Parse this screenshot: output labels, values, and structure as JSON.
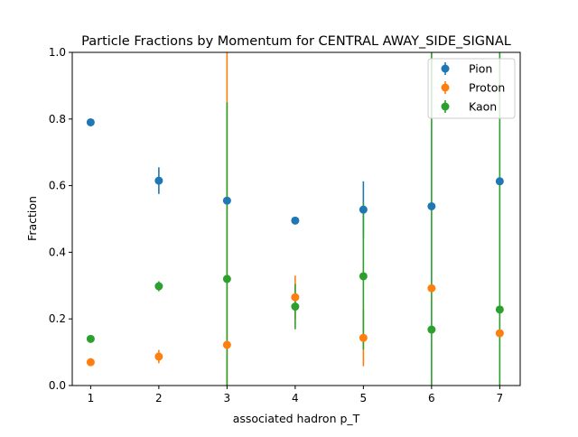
{
  "chart_data": {
    "type": "scatter",
    "title": "Particle Fractions by Momentum for CENTRAL AWAY_SIDE_SIGNAL",
    "xlabel": "associated hadron p_T",
    "ylabel": "Fraction",
    "xlim": [
      0.73,
      7.3
    ],
    "ylim": [
      0,
      1.0
    ],
    "xticks": [
      1,
      2,
      3,
      4,
      5,
      6,
      7
    ],
    "yticks": [
      0.0,
      0.2,
      0.4,
      0.6,
      0.8,
      1.0
    ],
    "grid": false,
    "legend_position": "top-right",
    "series": [
      {
        "name": "Pion",
        "color": "#1f77b4",
        "points": [
          {
            "x": 1,
            "y": 0.79,
            "err": 0.0
          },
          {
            "x": 2,
            "y": 0.615,
            "err": 0.04
          },
          {
            "x": 3,
            "y": 0.555,
            "err": 0.0
          },
          {
            "x": 4,
            "y": 0.495,
            "err": 0.0
          },
          {
            "x": 5,
            "y": 0.528,
            "err": 0.085
          },
          {
            "x": 6,
            "y": 0.538,
            "err": 0.0
          },
          {
            "x": 7,
            "y": 0.613,
            "err": 0.0
          }
        ]
      },
      {
        "name": "Proton",
        "color": "#ff7f0e",
        "points": [
          {
            "x": 1,
            "y": 0.07,
            "err": 0.0
          },
          {
            "x": 2,
            "y": 0.087,
            "err": 0.02
          },
          {
            "x": 3,
            "y": 0.122,
            "err": 0.9
          },
          {
            "x": 4,
            "y": 0.265,
            "err": 0.065
          },
          {
            "x": 5,
            "y": 0.143,
            "err": 0.085
          },
          {
            "x": 6,
            "y": 0.292,
            "err": 0.0
          },
          {
            "x": 7,
            "y": 0.157,
            "err": 0.0
          }
        ]
      },
      {
        "name": "Kaon",
        "color": "#2ca02c",
        "points": [
          {
            "x": 1,
            "y": 0.14,
            "err": 0.0
          },
          {
            "x": 2,
            "y": 0.298,
            "err": 0.015
          },
          {
            "x": 3,
            "y": 0.32,
            "err": 0.53
          },
          {
            "x": 4,
            "y": 0.237,
            "err": 0.068
          },
          {
            "x": 5,
            "y": 0.328,
            "err": 0.22
          },
          {
            "x": 6,
            "y": 0.168,
            "err": 1.0
          },
          {
            "x": 7,
            "y": 0.228,
            "err": 1.0
          }
        ]
      }
    ]
  }
}
